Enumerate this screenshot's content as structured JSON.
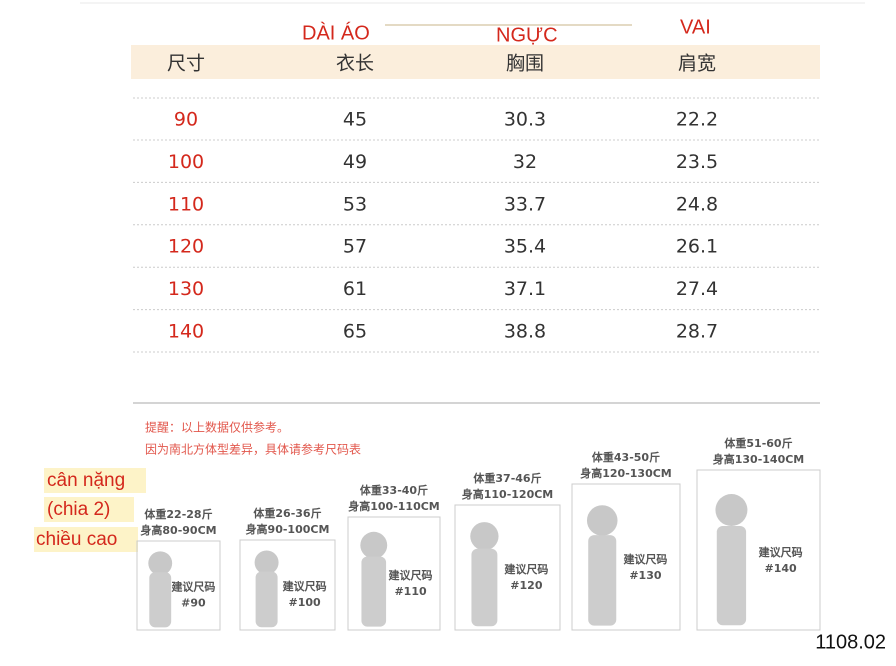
{
  "annotations": {
    "length": "DÀI ÁO",
    "chest": "NGỰC",
    "shoulder": "VAI",
    "weight": "cân nặng",
    "divide": "(chia 2)",
    "height": "chiều cao",
    "code": "1108.02"
  },
  "table": {
    "header": [
      "尺寸",
      "衣长",
      "胸围",
      "肩宽"
    ],
    "rows": [
      [
        "90",
        "45",
        "30.3",
        "22.2"
      ],
      [
        "100",
        "49",
        "32",
        "23.5"
      ],
      [
        "110",
        "53",
        "33.7",
        "24.8"
      ],
      [
        "120",
        "57",
        "35.4",
        "26.1"
      ],
      [
        "130",
        "61",
        "37.1",
        "27.4"
      ],
      [
        "140",
        "65",
        "38.8",
        "28.7"
      ]
    ]
  },
  "notes": [
    "提醒：以上数据仅供参考。",
    "因为南北方体型差异，具体请参考尺码表"
  ],
  "figures": [
    {
      "weight": "体重22-28斤",
      "height": "身高80-90CM",
      "advice": "建议尺码",
      "size": "#90"
    },
    {
      "weight": "体重26-36斤",
      "height": "身高90-100CM",
      "advice": "建议尺码",
      "size": "#100"
    },
    {
      "weight": "体重33-40斤",
      "height": "身高100-110CM",
      "advice": "建议尺码",
      "size": "#110"
    },
    {
      "weight": "体重37-46斤",
      "height": "身高110-120CM",
      "advice": "建议尺码",
      "size": "#120"
    },
    {
      "weight": "体重43-50斤",
      "height": "身高120-130CM",
      "advice": "建议尺码",
      "size": "#130"
    },
    {
      "weight": "体重51-60斤",
      "height": "身高130-140CM",
      "advice": "建议尺码",
      "size": "#140"
    }
  ]
}
